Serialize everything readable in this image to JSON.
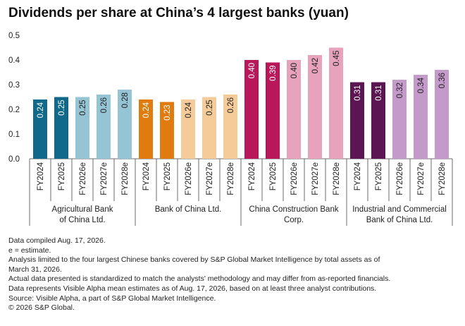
{
  "chart_data": {
    "type": "bar",
    "title": "Dividends per share at China’s 4 largest banks (yuan)",
    "ylim": [
      0,
      0.5
    ],
    "yticks": [
      "0.0",
      "0.1",
      "0.2",
      "0.3",
      "0.4",
      "0.5"
    ],
    "grid": false,
    "groups": [
      {
        "name": "Agricultural Bank of China Ltd.",
        "name_lines": [
          "Agricultural Bank",
          "of China Ltd."
        ],
        "categories": [
          "FY2024",
          "FY2025",
          "FY2026e",
          "FY2027e",
          "FY2028e"
        ],
        "values": [
          0.24,
          0.25,
          0.25,
          0.26,
          0.28
        ],
        "labels": [
          "0.24",
          "0.25",
          "0.25",
          "0.26",
          "0.28"
        ],
        "colors": [
          "#10698a",
          "#10698a",
          "#95c4d4",
          "#95c4d4",
          "#95c4d4"
        ]
      },
      {
        "name": "Bank of China Ltd.",
        "name_lines": [
          "Bank of China Ltd."
        ],
        "categories": [
          "FY2024",
          "FY2025",
          "FY2026e",
          "FY2027e",
          "FY2028e"
        ],
        "values": [
          0.24,
          0.23,
          0.24,
          0.25,
          0.26
        ],
        "labels": [
          "0.24",
          "0.23",
          "0.24",
          "0.25",
          "0.26"
        ],
        "colors": [
          "#e07b0f",
          "#e07b0f",
          "#f5cc99",
          "#f5cc99",
          "#f5cc99"
        ]
      },
      {
        "name": "China Construction Bank Corp.",
        "name_lines": [
          "China Construction Bank",
          "Corp."
        ],
        "categories": [
          "FY2024",
          "FY2025",
          "FY2026e",
          "FY2027e",
          "FY2028e"
        ],
        "values": [
          0.4,
          0.39,
          0.4,
          0.42,
          0.45
        ],
        "labels": [
          "0.40",
          "0.39",
          "0.40",
          "0.42",
          "0.45"
        ],
        "colors": [
          "#b8185a",
          "#b8185a",
          "#e7a3bb",
          "#e7a3bb",
          "#e7a3bb"
        ]
      },
      {
        "name": "Industrial and Commercial Bank of China Ltd.",
        "name_lines": [
          "Industrial and Commercial",
          "Bank of China Ltd."
        ],
        "categories": [
          "FY2024",
          "FY2025",
          "FY2026e",
          "FY2027e",
          "FY2028e"
        ],
        "values": [
          0.31,
          0.31,
          0.32,
          0.34,
          0.36
        ],
        "labels": [
          "0.31",
          "0.31",
          "0.32",
          "0.34",
          "0.36"
        ],
        "colors": [
          "#5a1552",
          "#5a1552",
          "#c49acb",
          "#c49acb",
          "#c49acb"
        ]
      }
    ]
  },
  "footnotes": [
    "Data compiled Aug. 17, 2026.",
    "e = estimate.",
    "Analysis limited to the four largest Chinese banks covered by S&P Global Market Intelligence by total assets as of",
    "March 31, 2026.",
    " Actual data presented is standardized to match the analysts' methodology and may differ from as-reported financials.",
    "Data represents Visible Alpha mean estimates as of Aug. 17, 2026, based on at least three analyst contributions.",
    "Source: Visible Alpha, a part of S&P Global Market Intelligence.",
    "© 2026 S&P Global."
  ],
  "colors": {
    "axis": "#6b6b6b",
    "text": "#222222",
    "label_on_dark": "#ffffff",
    "label_on_light": "#222222"
  }
}
